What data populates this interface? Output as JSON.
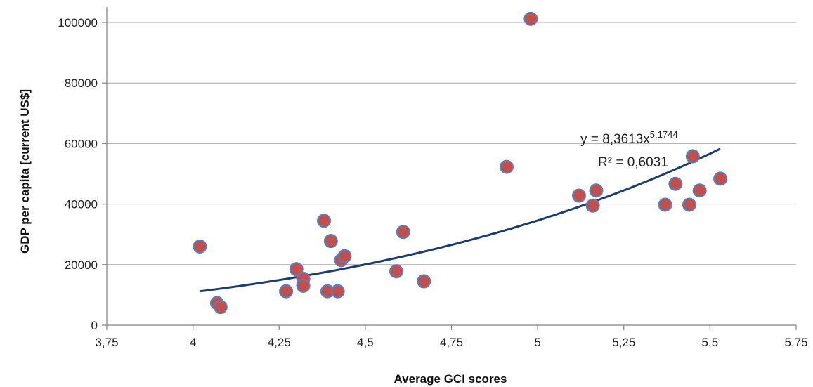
{
  "chart_data": {
    "type": "scatter",
    "title": "",
    "xlabel": "Average GCI scores",
    "ylabel": "GDP per capita [current US$]",
    "xlim": [
      3.75,
      5.75
    ],
    "ylim": [
      0,
      100000
    ],
    "x_ticks": [
      3.75,
      4,
      4.25,
      4.5,
      4.75,
      5,
      5.25,
      5.5,
      5.75
    ],
    "x_tick_labels": [
      "3,75",
      "4",
      "4,25",
      "4,5",
      "4,75",
      "5",
      "5,25",
      "5,5",
      "5,75"
    ],
    "y_ticks": [
      0,
      20000,
      40000,
      60000,
      80000,
      100000
    ],
    "y_tick_labels": [
      "0",
      "20000",
      "40000",
      "60000",
      "80000",
      "100000"
    ],
    "grid": "horizontal",
    "points": [
      {
        "x": 4.02,
        "y": 26000
      },
      {
        "x": 4.07,
        "y": 7300
      },
      {
        "x": 4.08,
        "y": 6000
      },
      {
        "x": 4.27,
        "y": 11200
      },
      {
        "x": 4.3,
        "y": 18500
      },
      {
        "x": 4.32,
        "y": 15300
      },
      {
        "x": 4.32,
        "y": 13000
      },
      {
        "x": 4.38,
        "y": 34500
      },
      {
        "x": 4.39,
        "y": 11200
      },
      {
        "x": 4.4,
        "y": 27800
      },
      {
        "x": 4.42,
        "y": 11200
      },
      {
        "x": 4.43,
        "y": 21500
      },
      {
        "x": 4.44,
        "y": 22800
      },
      {
        "x": 4.59,
        "y": 17800
      },
      {
        "x": 4.61,
        "y": 30800
      },
      {
        "x": 4.67,
        "y": 14500
      },
      {
        "x": 4.91,
        "y": 52300
      },
      {
        "x": 4.98,
        "y": 101200
      },
      {
        "x": 5.12,
        "y": 42800
      },
      {
        "x": 5.16,
        "y": 39500
      },
      {
        "x": 5.17,
        "y": 44500
      },
      {
        "x": 5.37,
        "y": 39800
      },
      {
        "x": 5.4,
        "y": 46700
      },
      {
        "x": 5.44,
        "y": 39800
      },
      {
        "x": 5.45,
        "y": 55800
      },
      {
        "x": 5.47,
        "y": 44500
      },
      {
        "x": 5.53,
        "y": 48400
      }
    ],
    "trendline": {
      "type": "power",
      "coefficient": 8.3613,
      "exponent": 5.1744,
      "x_range": [
        4.02,
        5.53
      ],
      "equation_label": "y = 8,3613x",
      "equation_exponent": "5,1744",
      "r2_label": "R² = 0,6031"
    },
    "colors": {
      "marker_fill": "#c0504d",
      "marker_stroke": "#5a7fc0",
      "trendline": "#1f3d6b",
      "axis": "#808080",
      "grid": "#a6a6a6"
    }
  }
}
